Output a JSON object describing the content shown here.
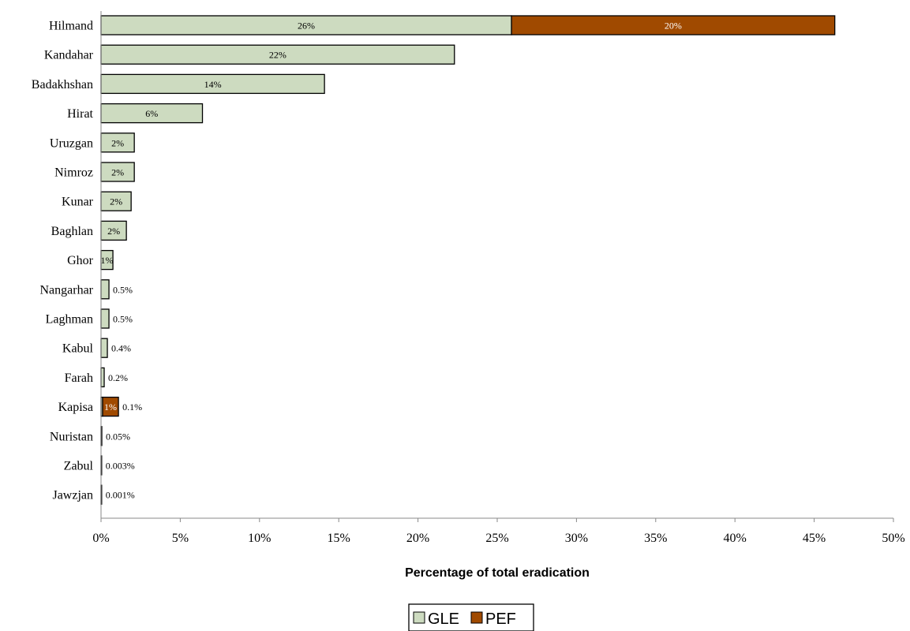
{
  "chart_data": {
    "type": "bar",
    "orientation": "horizontal",
    "stacked": true,
    "categories": [
      "Hilmand",
      "Kandahar",
      "Badakhshan",
      "Hirat",
      "Uruzgan",
      "Nimroz",
      "Kunar",
      "Baghlan",
      "Ghor",
      "Nangarhar",
      "Laghman",
      "Kabul",
      "Farah",
      "Kapisa",
      "Nuristan",
      "Zabul",
      "Jawzjan"
    ],
    "series": [
      {
        "name": "GLE",
        "color": "#cddbc0",
        "values": [
          25.9,
          22.3,
          14.1,
          6.4,
          2.1,
          2.1,
          1.9,
          1.6,
          0.75,
          0.5,
          0.5,
          0.4,
          0.2,
          0.1,
          0.05,
          0.003,
          0.001
        ],
        "labels": [
          "26%",
          "22%",
          "14%",
          "6%",
          "2%",
          "2%",
          "2%",
          "2%",
          "1%",
          "0.5%",
          "0.5%",
          "0.4%",
          "0.2%",
          "0.1%",
          "0.05%",
          "0.003%",
          "0.001%"
        ]
      },
      {
        "name": "PEF",
        "color": "#a04a00",
        "values": [
          20.4,
          null,
          null,
          null,
          null,
          null,
          null,
          null,
          null,
          null,
          null,
          null,
          null,
          1.0,
          null,
          null,
          null
        ],
        "labels": [
          "20%",
          "",
          "",
          "",
          "",
          "",
          "",
          "",
          "",
          "",
          "",
          "",
          "",
          "1%",
          "",
          "",
          ""
        ]
      }
    ],
    "xlabel": "Percentage of total eradication",
    "xlim": [
      0,
      50
    ],
    "xticks": [
      "0%",
      "5%",
      "10%",
      "15%",
      "20%",
      "25%",
      "30%",
      "35%",
      "40%",
      "45%",
      "50%"
    ],
    "grid": false,
    "legend": "bottom"
  }
}
